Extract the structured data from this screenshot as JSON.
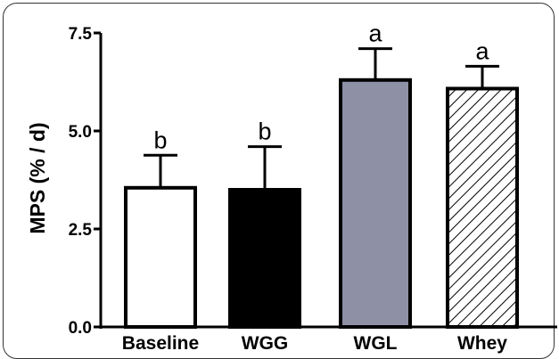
{
  "chart_data": {
    "type": "bar",
    "title": "",
    "xlabel": "",
    "ylabel": "MPS (% / d)",
    "categories": [
      "Baseline",
      "WGG",
      "WGL",
      "Whey"
    ],
    "values": [
      3.55,
      3.5,
      6.3,
      6.08
    ],
    "error_upper": [
      4.38,
      4.6,
      7.1,
      6.65
    ],
    "significance_labels": [
      "b",
      "b",
      "a",
      "a"
    ],
    "ylim": [
      0,
      7.5
    ],
    "yticks": [
      "0.0",
      "2.5",
      "5.0",
      "7.5"
    ],
    "grid": false,
    "bar_fills": [
      "white",
      "black",
      "#8e90a6",
      "hatched"
    ],
    "colors": {
      "bar_stroke": "#000000",
      "wgl_fill": "#8e90a6"
    }
  }
}
